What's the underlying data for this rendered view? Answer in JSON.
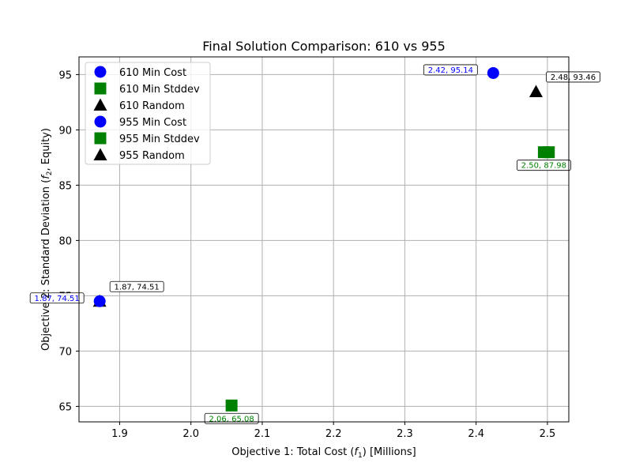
{
  "chart_data": {
    "type": "scatter",
    "title": "Final Solution Comparison: 610 vs 955",
    "xlabel": "Objective 1: Total Cost (f1) [Millions]",
    "ylabel": "Objective 2: Standard Deviation (f2, Equity)",
    "xlim": [
      1.843,
      2.53
    ],
    "ylim": [
      63.6,
      96.6
    ],
    "xticks": [
      1.9,
      2.0,
      2.1,
      2.2,
      2.3,
      2.4,
      2.5
    ],
    "yticks": [
      65,
      70,
      75,
      80,
      85,
      90,
      95
    ],
    "grid": true,
    "legend_position": "upper-left",
    "series": [
      {
        "name": "610 Min Cost",
        "marker": "circle",
        "color": "#0000ff",
        "points": [
          [
            2.424,
            95.14
          ]
        ]
      },
      {
        "name": "610 Min Stddev",
        "marker": "square",
        "color": "#008000",
        "points": [
          [
            2.495,
            87.98
          ]
        ]
      },
      {
        "name": "610 Random",
        "marker": "triangle",
        "color": "#000000",
        "points": [
          [
            1.872,
            74.51
          ]
        ]
      },
      {
        "name": "955 Min Cost",
        "marker": "circle",
        "color": "#0000ff",
        "points": [
          [
            1.872,
            74.51
          ]
        ]
      },
      {
        "name": "955 Min Stddev",
        "marker": "square",
        "color": "#008000",
        "points": [
          [
            2.057,
            65.08
          ],
          [
            2.502,
            87.98
          ]
        ]
      },
      {
        "name": "955 Random",
        "marker": "triangle",
        "color": "#000000",
        "points": [
          [
            2.484,
            93.46
          ]
        ]
      }
    ],
    "annotations": [
      {
        "text": "2.42, 95.14",
        "x": 2.424,
        "y": 95.14,
        "color": "#0000ff",
        "anchor": "left"
      },
      {
        "text": "2.48, 93.46",
        "x": 2.484,
        "y": 93.46,
        "color": "#000000",
        "anchor": "above-right"
      },
      {
        "text": "2.50, 87.98",
        "x": 2.495,
        "y": 87.98,
        "color": "#008000",
        "anchor": "below"
      },
      {
        "text": "1.87, 74.51",
        "x": 1.872,
        "y": 74.51,
        "color": "#000000",
        "anchor": "above-right"
      },
      {
        "text": "1.87, 74.51",
        "x": 1.872,
        "y": 74.51,
        "color": "#0000ff",
        "anchor": "left"
      },
      {
        "text": "2.06, 65.08",
        "x": 2.057,
        "y": 65.08,
        "color": "#008000",
        "anchor": "below"
      }
    ]
  }
}
